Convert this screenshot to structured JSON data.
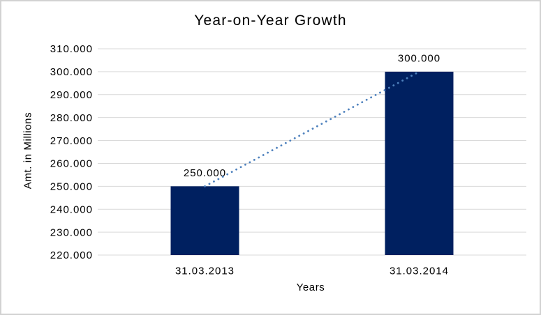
{
  "chart_data": {
    "type": "bar",
    "title": "Year-on-Year Growth",
    "xlabel": "Years",
    "ylabel": "Amt. in Millions",
    "categories": [
      "31.03.2013",
      "31.03.2014"
    ],
    "values": [
      250000,
      300000
    ],
    "data_labels": [
      "250.000",
      "300.000"
    ],
    "ylim": [
      220000,
      310000
    ],
    "ytick_step": 10000,
    "ytick_labels": [
      "220.000",
      "230.000",
      "240.000",
      "250.000",
      "260.000",
      "270.000",
      "280.000",
      "290.000",
      "300.000",
      "310.000"
    ],
    "grid": "horizontal",
    "legend": "none",
    "trendline": {
      "style": "dotted",
      "from_value": 250000,
      "to_value": 300000
    },
    "colors": {
      "bar": "#002060",
      "trendline": "#4e81bd",
      "gridline": "#d9d9d9",
      "text": "#000000",
      "border": "#d2d2d2",
      "background": "#ffffff"
    }
  }
}
